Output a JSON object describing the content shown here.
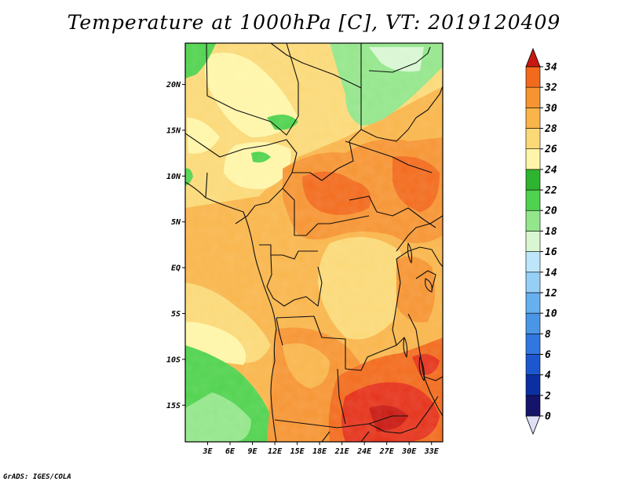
{
  "title": "Temperature at 1000hPa [C], VT: 2019120409",
  "footer": "GrADS: IGES/COLA",
  "map": {
    "lon_range": [
      0,
      34.5
    ],
    "lat_range": [
      -19,
      24.5
    ],
    "lon_ticks": [
      {
        "v": 3,
        "label": "3E"
      },
      {
        "v": 6,
        "label": "6E"
      },
      {
        "v": 9,
        "label": "9E"
      },
      {
        "v": 12,
        "label": "12E"
      },
      {
        "v": 15,
        "label": "15E"
      },
      {
        "v": 18,
        "label": "18E"
      },
      {
        "v": 21,
        "label": "21E"
      },
      {
        "v": 24,
        "label": "24E"
      },
      {
        "v": 27,
        "label": "27E"
      },
      {
        "v": 30,
        "label": "30E"
      },
      {
        "v": 33,
        "label": "33E"
      }
    ],
    "lat_ticks": [
      {
        "v": 20,
        "label": "20N"
      },
      {
        "v": 15,
        "label": "15N"
      },
      {
        "v": 10,
        "label": "10N"
      },
      {
        "v": 5,
        "label": "5N"
      },
      {
        "v": 0,
        "label": "EQ"
      },
      {
        "v": -5,
        "label": "5S"
      },
      {
        "v": -10,
        "label": "10S"
      },
      {
        "v": -15,
        "label": "15S"
      }
    ]
  },
  "colorbar": {
    "levels": [
      0,
      2,
      4,
      6,
      8,
      10,
      12,
      14,
      16,
      18,
      20,
      22,
      24,
      26,
      28,
      30,
      32,
      34
    ],
    "colors": [
      "#16146a",
      "#0b2fa2",
      "#1d57d0",
      "#3077e0",
      "#4a96e6",
      "#67b0ef",
      "#95cff6",
      "#bee6fa",
      "#d8f6d2",
      "#93e68a",
      "#4fd24d",
      "#2fb42f",
      "#fff5a8",
      "#fbd977",
      "#f9b54a",
      "#f69432",
      "#f26a1c",
      "#e5321a",
      "#c81810"
    ],
    "under_color": "#dfe0f7"
  }
}
